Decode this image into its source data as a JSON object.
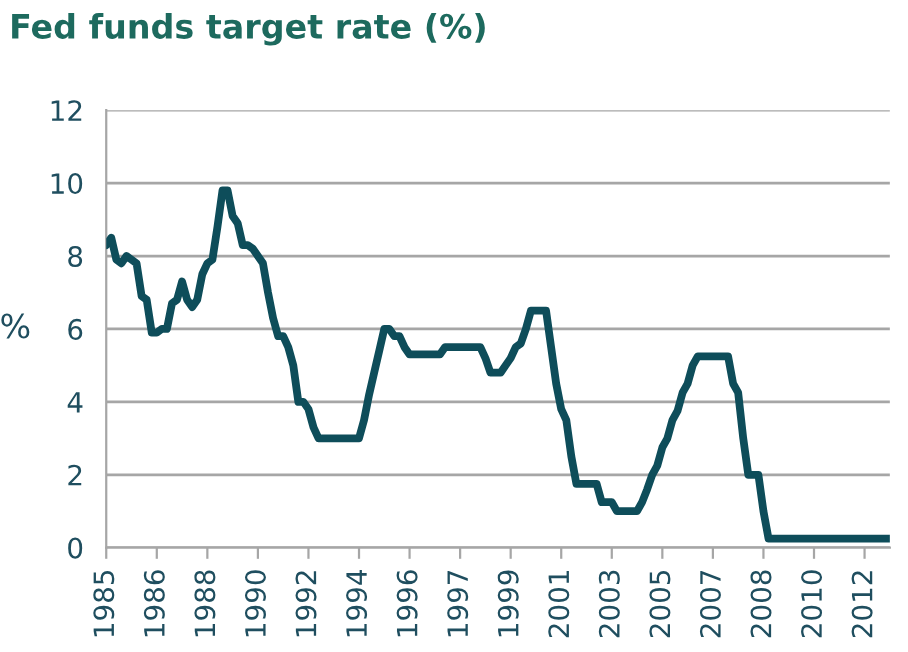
{
  "chart_data": {
    "type": "line",
    "title": "Fed funds target rate (%)",
    "ylabel": "%",
    "categories": [
      "1985",
      null,
      null,
      null,
      null,
      null,
      null,
      null,
      null,
      null,
      "1986",
      null,
      null,
      null,
      null,
      null,
      null,
      null,
      null,
      null,
      "1988",
      null,
      null,
      null,
      null,
      null,
      null,
      null,
      null,
      null,
      "1990",
      null,
      null,
      null,
      null,
      null,
      null,
      null,
      null,
      null,
      "1992",
      null,
      null,
      null,
      null,
      null,
      null,
      null,
      null,
      null,
      "1994",
      null,
      null,
      null,
      null,
      null,
      null,
      null,
      null,
      null,
      "1996",
      null,
      null,
      null,
      null,
      null,
      null,
      null,
      null,
      null,
      "1997",
      null,
      null,
      null,
      null,
      null,
      null,
      null,
      null,
      null,
      "1999",
      null,
      null,
      null,
      null,
      null,
      null,
      null,
      null,
      null,
      "2001",
      null,
      null,
      null,
      null,
      null,
      null,
      null,
      null,
      null,
      "2003",
      null,
      null,
      null,
      null,
      null,
      null,
      null,
      null,
      null,
      "2005",
      null,
      null,
      null,
      null,
      null,
      null,
      null,
      null,
      null,
      "2007",
      null,
      null,
      null,
      null,
      null,
      null,
      null,
      null,
      null,
      "2008",
      null,
      null,
      null,
      null,
      null,
      null,
      null,
      null,
      null,
      "2010",
      null,
      null,
      null,
      null,
      null,
      null,
      null,
      null,
      null,
      "2012",
      null,
      null,
      null,
      null,
      null
    ],
    "series": [
      {
        "color": "#0e4d5a",
        "values": [
          8.3,
          8.5,
          7.9,
          7.8,
          8.0,
          7.9,
          7.8,
          6.9,
          6.8,
          5.9,
          5.9,
          6.0,
          6.0,
          6.7,
          6.8,
          7.3,
          6.8,
          6.6,
          6.8,
          7.5,
          7.8,
          7.9,
          8.8,
          9.8,
          9.8,
          9.1,
          8.9,
          8.3,
          8.3,
          8.2,
          8.0,
          7.8,
          7.0,
          6.3,
          5.8,
          5.8,
          5.5,
          5.0,
          4.0,
          4.0,
          3.8,
          3.3,
          3.0,
          3.0,
          3.0,
          3.0,
          3.0,
          3.0,
          3.0,
          3.0,
          3.0,
          3.5,
          4.2,
          4.8,
          5.4,
          6.0,
          6.0,
          5.8,
          5.8,
          5.5,
          5.3,
          5.3,
          5.3,
          5.3,
          5.3,
          5.3,
          5.3,
          5.5,
          5.5,
          5.5,
          5.5,
          5.5,
          5.5,
          5.5,
          5.5,
          5.2,
          4.8,
          4.8,
          4.8,
          5.0,
          5.2,
          5.5,
          5.6,
          6.0,
          6.5,
          6.5,
          6.5,
          6.5,
          5.5,
          4.5,
          3.8,
          3.5,
          2.5,
          1.75,
          1.75,
          1.75,
          1.75,
          1.75,
          1.25,
          1.25,
          1.25,
          1.0,
          1.0,
          1.0,
          1.0,
          1.0,
          1.25,
          1.6,
          2.0,
          2.25,
          2.75,
          3.0,
          3.5,
          3.75,
          4.25,
          4.5,
          5.0,
          5.25,
          5.25,
          5.25,
          5.25,
          5.25,
          5.25,
          5.25,
          4.5,
          4.25,
          3.0,
          2.0,
          2.0,
          2.0,
          1.0,
          0.25,
          0.25,
          0.25,
          0.25,
          0.25,
          0.25,
          0.25,
          0.25,
          0.25,
          0.25,
          0.25,
          0.25,
          0.25,
          0.25,
          0.25,
          0.25,
          0.25,
          0.25,
          0.25,
          0.25,
          0.25,
          0.25,
          0.25,
          0.25,
          0.25
        ]
      }
    ],
    "ylim": [
      0,
      12
    ],
    "yticks": [
      0,
      2,
      4,
      6,
      8,
      10,
      12
    ],
    "grid": "y",
    "marker": "none",
    "line_style": "solid"
  }
}
